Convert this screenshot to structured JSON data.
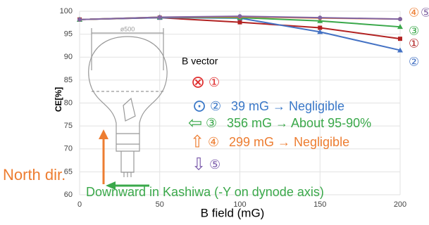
{
  "chart_data": {
    "type": "line",
    "x_label": "B field (mG)",
    "y_label": "CE[%]",
    "x": [
      0,
      50,
      100,
      150,
      200
    ],
    "xlim": [
      0,
      200
    ],
    "xticks": [
      0,
      50,
      100,
      150,
      200
    ],
    "ylim": [
      60,
      100
    ],
    "yticks": [
      60,
      65,
      70,
      75,
      80,
      85,
      90,
      95,
      100
    ],
    "grid": true,
    "series": [
      {
        "name": "①",
        "color": "#b22222",
        "marker": "square",
        "values": [
          98.2,
          98.6,
          97.6,
          96.4,
          94.0
        ]
      },
      {
        "name": "②",
        "color": "#4472c4",
        "marker": "triangle",
        "values": [
          98.2,
          98.6,
          98.5,
          95.5,
          91.5
        ]
      },
      {
        "name": "③",
        "color": "#3aa84a",
        "marker": "triangle",
        "values": [
          98.2,
          98.7,
          98.6,
          97.9,
          96.6
        ]
      },
      {
        "name": "④",
        "color": "#ed7d31",
        "marker": "circle",
        "values": [
          98.2,
          98.7,
          98.8,
          98.5,
          98.3
        ]
      },
      {
        "name": "⑤",
        "color": "#8064a2",
        "marker": "circle",
        "values": [
          98.2,
          98.7,
          98.9,
          98.6,
          98.3
        ]
      }
    ],
    "overlay": {
      "heading": "B vector",
      "dimension": "ø500",
      "vectors": [
        {
          "symbol": "⊗",
          "label": "①",
          "color": "#e03030"
        },
        {
          "symbol": "⊙",
          "label": "②",
          "note": "39 mG → Negligible",
          "color": "#3a78c8"
        },
        {
          "symbol": "⇦",
          "label": "③",
          "note": "356 mG → About 95-90%",
          "color": "#3aa84a"
        },
        {
          "symbol": "⇧",
          "label": "④",
          "note": "299 mG → Negligible",
          "color": "#ed7d31"
        },
        {
          "symbol": "⇩",
          "label": "⑤",
          "color": "#7a5aaa"
        }
      ],
      "north": "North dir.",
      "downward": "Downward in Kashiwa (-Y on dynode axis)"
    }
  }
}
